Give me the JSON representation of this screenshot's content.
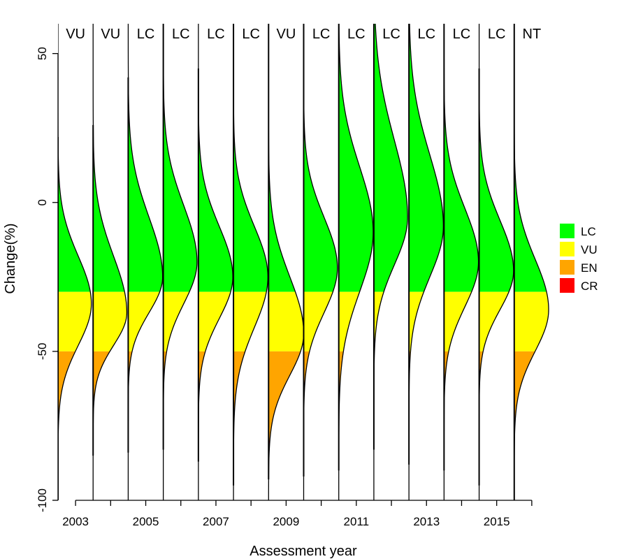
{
  "chart_data": {
    "type": "area",
    "subtype": "violin-half-density",
    "xlabel": "Assessment year",
    "ylabel": "Change(%)",
    "ylim": [
      -100,
      60
    ],
    "yticks": [
      -100,
      -50,
      0,
      50
    ],
    "years": [
      2003,
      2004,
      2005,
      2006,
      2007,
      2008,
      2009,
      2010,
      2011,
      2012,
      2013,
      2014,
      2015,
      2016
    ],
    "xtick_labels": [
      "2003",
      "",
      "2005",
      "",
      "2007",
      "",
      "2009",
      "",
      "2011",
      "",
      "2013",
      "",
      "2015",
      ""
    ],
    "categories": [
      "VU",
      "VU",
      "LC",
      "LC",
      "LC",
      "LC",
      "VU",
      "LC",
      "LC",
      "LC",
      "LC",
      "LC",
      "LC",
      "NT"
    ],
    "thresholds": {
      "LC_VU": -30,
      "VU_EN": -50,
      "EN_CR": -80
    },
    "distributions": [
      {
        "year": 2003,
        "mode": -34,
        "sd_lower": 14,
        "sd_upper": 16,
        "width": 0.95,
        "top": 22,
        "bottom": -100
      },
      {
        "year": 2004,
        "mode": -37,
        "sd_lower": 11,
        "sd_upper": 19,
        "width": 0.96,
        "top": 26,
        "bottom": -85
      },
      {
        "year": 2005,
        "mode": -25,
        "sd_lower": 12,
        "sd_upper": 20,
        "width": 0.98,
        "top": 42,
        "bottom": -84
      },
      {
        "year": 2006,
        "mode": -20,
        "sd_lower": 14,
        "sd_upper": 19,
        "width": 0.96,
        "top": 60,
        "bottom": -83
      },
      {
        "year": 2007,
        "mode": -25,
        "sd_lower": 14,
        "sd_upper": 17,
        "width": 0.98,
        "top": 45,
        "bottom": -87
      },
      {
        "year": 2008,
        "mode": -25,
        "sd_lower": 17,
        "sd_upper": 17,
        "width": 0.98,
        "top": 60,
        "bottom": -95
      },
      {
        "year": 2009,
        "mode": -44,
        "sd_lower": 14,
        "sd_upper": 19,
        "width": 1.0,
        "top": 60,
        "bottom": -93
      },
      {
        "year": 2010,
        "mode": -22,
        "sd_lower": 15,
        "sd_upper": 17,
        "width": 0.96,
        "top": 60,
        "bottom": -92
      },
      {
        "year": 2011,
        "mode": -10,
        "sd_lower": 20,
        "sd_upper": 22,
        "width": 0.98,
        "top": 60,
        "bottom": -90
      },
      {
        "year": 2012,
        "mode": -5,
        "sd_lower": 16,
        "sd_upper": 26,
        "width": 0.96,
        "top": 60,
        "bottom": -83
      },
      {
        "year": 2013,
        "mode": -8,
        "sd_lower": 17,
        "sd_upper": 24,
        "width": 0.98,
        "top": 60,
        "bottom": -88
      },
      {
        "year": 2014,
        "mode": -20,
        "sd_lower": 15,
        "sd_upper": 18,
        "width": 0.98,
        "top": 60,
        "bottom": -90
      },
      {
        "year": 2015,
        "mode": -23,
        "sd_lower": 13,
        "sd_upper": 17,
        "width": 0.98,
        "top": 45,
        "bottom": -95
      },
      {
        "year": 2016,
        "mode": -36,
        "sd_lower": 14,
        "sd_upper": 17,
        "width": 0.98,
        "top": 60,
        "bottom": -100
      }
    ],
    "legend": {
      "placement": "right",
      "entries": [
        {
          "label": "LC",
          "color": "#00ff00"
        },
        {
          "label": "VU",
          "color": "#ffff00"
        },
        {
          "label": "EN",
          "color": "#ffa500"
        },
        {
          "label": "CR",
          "color": "#ff0000"
        }
      ]
    }
  }
}
